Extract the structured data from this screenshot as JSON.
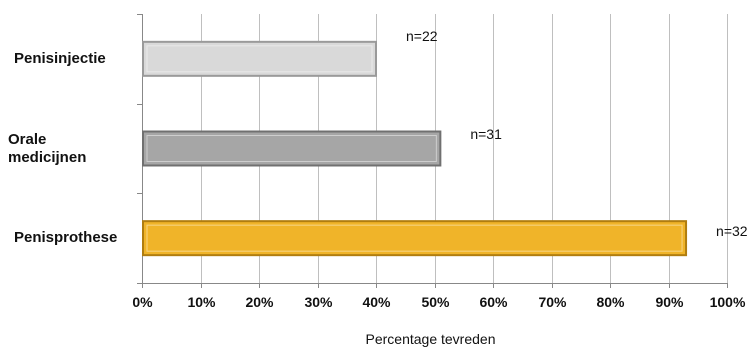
{
  "chart_data": {
    "type": "bar",
    "orientation": "horizontal",
    "categories": [
      "Penisinjectie",
      "Orale\nmedicijnen",
      "Penisprothese"
    ],
    "values": [
      40,
      51,
      93
    ],
    "annotations": [
      "n=22",
      "n=31",
      "n=32"
    ],
    "bar_colors": [
      "#d9d9d9",
      "#a6a6a6",
      "#f0b429"
    ],
    "bar_edge_colors": [
      "#9a9a9a",
      "#707070",
      "#b07d10"
    ],
    "xlabel": "Percentage tevreden",
    "xlim": [
      0,
      100
    ],
    "xticks": [
      "0%",
      "10%",
      "20%",
      "30%",
      "40%",
      "50%",
      "60%",
      "70%",
      "80%",
      "90%",
      "100%"
    ],
    "grid": true
  }
}
